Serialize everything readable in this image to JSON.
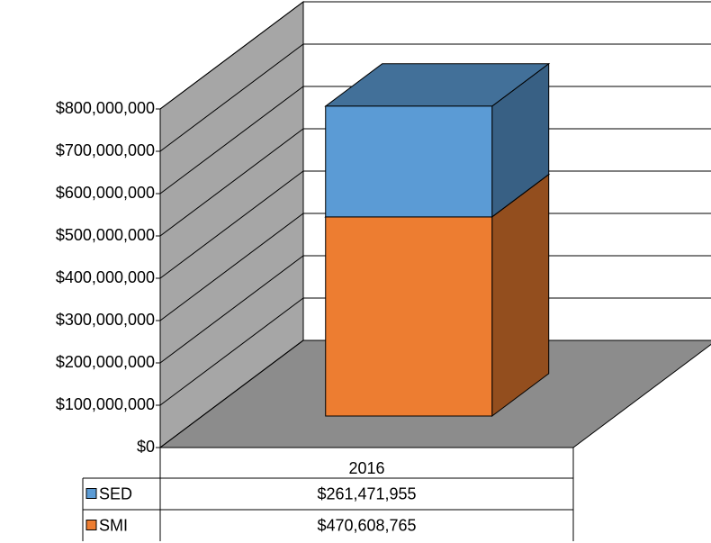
{
  "chart_data": {
    "type": "bar3d_stacked",
    "categories": [
      "2016"
    ],
    "series": [
      {
        "name": "SED",
        "color": "#5b9bd5",
        "values": [
          261471955
        ],
        "value_labels": [
          "$261,471,955"
        ]
      },
      {
        "name": "SMI",
        "color": "#ed7d31",
        "values": [
          470608765
        ],
        "value_labels": [
          "$470,608,765"
        ]
      }
    ],
    "ylim": [
      0,
      800000000
    ],
    "yticks": [
      {
        "value": 0,
        "label": "$0"
      },
      {
        "value": 100000000,
        "label": "$100,000,000"
      },
      {
        "value": 200000000,
        "label": "$200,000,000"
      },
      {
        "value": 300000000,
        "label": "$300,000,000"
      },
      {
        "value": 400000000,
        "label": "$400,000,000"
      },
      {
        "value": 500000000,
        "label": "$500,000,000"
      },
      {
        "value": 600000000,
        "label": "$600,000,000"
      },
      {
        "value": 700000000,
        "label": "$700,000,000"
      },
      {
        "value": 800000000,
        "label": "$800,000,000"
      }
    ],
    "grid": true
  }
}
